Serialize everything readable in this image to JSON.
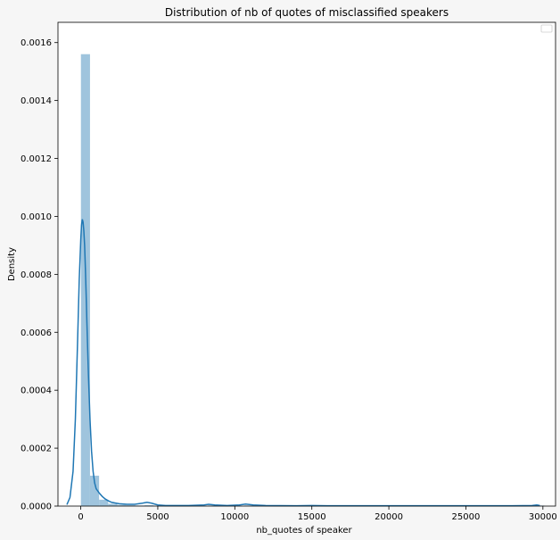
{
  "chart_data": {
    "type": "bar",
    "title": "Distribution of nb of quotes of misclassified speakers",
    "xlabel": "nb_quotes of speaker",
    "ylabel": "Density",
    "xlim": [
      -1480,
      30820
    ],
    "ylim": [
      0,
      0.00167
    ],
    "xticks": [
      0,
      5000,
      10000,
      15000,
      20000,
      25000,
      30000
    ],
    "xtick_labels": [
      "0",
      "5000",
      "10000",
      "15000",
      "20000",
      "25000",
      "30000"
    ],
    "yticks": [
      0,
      0.0002,
      0.0004,
      0.0006,
      0.0008,
      0.001,
      0.0012,
      0.0014,
      0.0016
    ],
    "ytick_labels": [
      "0.0000",
      "0.0002",
      "0.0004",
      "0.0006",
      "0.0008",
      "0.0010",
      "0.0012",
      "0.0014",
      "0.0016"
    ],
    "grid": false,
    "legend": "top-right (empty)",
    "bar_color": "#9fc4dd",
    "line_color": "#1f77b4",
    "bin_width": 590,
    "histogram": [
      {
        "x0": 10,
        "x1": 600,
        "density": 0.00156
      },
      {
        "x0": 600,
        "x1": 1190,
        "density": 0.000105
      },
      {
        "x0": 1190,
        "x1": 1780,
        "density": 2.2e-05
      },
      {
        "x0": 1780,
        "x1": 2370,
        "density": 8e-06
      },
      {
        "x0": 2370,
        "x1": 2960,
        "density": 4e-06
      },
      {
        "x0": 2960,
        "x1": 3550,
        "density": 3e-06
      },
      {
        "x0": 3550,
        "x1": 4140,
        "density": 2e-06
      },
      {
        "x0": 4140,
        "x1": 4730,
        "density": 3e-06
      },
      {
        "x0": 8260,
        "x1": 8850,
        "density": 2e-06
      },
      {
        "x0": 10620,
        "x1": 11210,
        "density": 2e-06
      },
      {
        "x0": 29500,
        "x1": 30090,
        "density": 2e-06
      }
    ],
    "kde": {
      "x": [
        -900,
        -700,
        -500,
        -350,
        -200,
        -100,
        0,
        50,
        100,
        150,
        200,
        250,
        300,
        350,
        400,
        500,
        600,
        700,
        800,
        900,
        1000,
        1200,
        1400,
        1600,
        1800,
        2000,
        2500,
        3000,
        3500,
        4000,
        4300,
        4600,
        5000,
        5500,
        6000,
        7000,
        8000,
        8300,
        8700,
        9500,
        10300,
        10700,
        11200,
        12000,
        14000,
        15000,
        16000,
        18000,
        20000,
        22000,
        24000,
        26000,
        28000,
        29300,
        29600,
        29800
      ],
      "y": [
        5e-06,
        3e-05,
        0.00012,
        0.0003,
        0.00058,
        0.00078,
        0.00092,
        0.00097,
        0.00099,
        0.00098,
        0.00095,
        0.0009,
        0.00082,
        0.00073,
        0.00063,
        0.00045,
        0.0003,
        0.00019,
        0.00012,
        8e-05,
        6e-05,
        4.5e-05,
        3.3e-05,
        2.4e-05,
        1.8e-05,
        1.3e-05,
        8e-06,
        6e-06,
        6e-06,
        1e-05,
        1.3e-05,
        1e-05,
        4e-06,
        2e-06,
        2e-06,
        2e-06,
        4e-06,
        6e-06,
        4e-06,
        2e-06,
        4e-06,
        7e-06,
        4e-06,
        2e-06,
        1e-06,
        2e-06,
        1e-06,
        1e-06,
        1e-06,
        1e-06,
        1e-06,
        1e-06,
        1e-06,
        2e-06,
        4e-06,
        2e-06
      ]
    }
  }
}
